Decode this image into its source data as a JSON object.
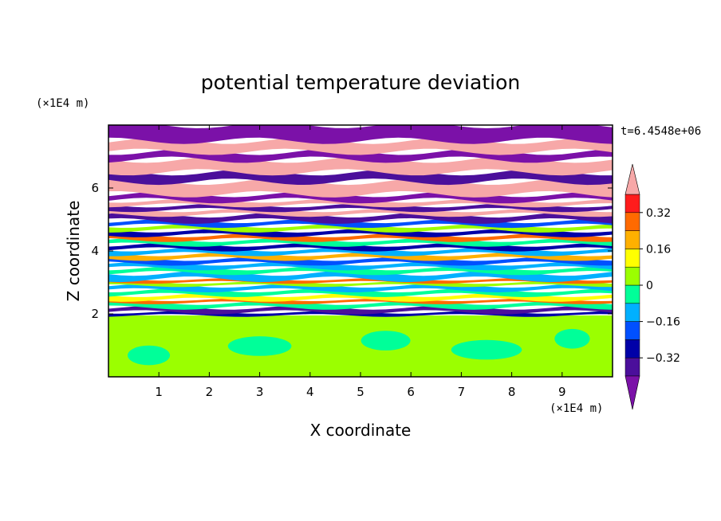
{
  "chart_data": {
    "type": "heatmap",
    "title": "potential temperature deviation",
    "xlabel": "X coordinate",
    "ylabel": "Z coordinate",
    "x_unit": "(×1E4 m)",
    "y_unit": "(×1E4 m)",
    "time_label": "t=6.4548e+06",
    "xlim": [
      0,
      10
    ],
    "ylim": [
      0,
      8
    ],
    "x_ticks": [
      1,
      2,
      3,
      4,
      5,
      6,
      7,
      8,
      9
    ],
    "y_ticks": [
      2,
      4,
      6
    ],
    "x_tick_labels": [
      "1",
      "2",
      "3",
      "4",
      "5",
      "6",
      "7",
      "8",
      "9"
    ],
    "y_tick_labels": [
      "2",
      "4",
      "6"
    ],
    "colorbar": {
      "levels": [
        -0.4,
        -0.32,
        -0.24,
        -0.16,
        -0.08,
        0,
        0.08,
        0.16,
        0.24,
        0.32,
        0.4
      ],
      "tick_values": [
        0.32,
        0.16,
        0,
        -0.16,
        -0.32
      ],
      "tick_labels": [
        "0.32",
        "0.16",
        "0",
        "−0.16",
        "−0.32"
      ],
      "colors": [
        "#7b11a8",
        "#4b0f9b",
        "#0000a8",
        "#0050ff",
        "#00b0ff",
        "#00ff99",
        "#9bff00",
        "#ffff00",
        "#ffb000",
        "#ff6a00",
        "#ff1c1c",
        "#f7a8a8"
      ],
      "extend": "both"
    },
    "bands": [
      {
        "z": [
          0.0,
          1.95
        ],
        "base": "#9bff00",
        "patch": "#00ff99"
      },
      {
        "z": [
          1.95,
          2.05
        ],
        "color": "#0000a8"
      },
      {
        "z": [
          2.05,
          2.2
        ],
        "color": "#4b0f9b"
      },
      {
        "z": [
          2.2,
          2.35
        ],
        "color": "#00ff99"
      },
      {
        "z": [
          2.35,
          2.45
        ],
        "color": "#ff6a00"
      },
      {
        "z": [
          2.45,
          2.6
        ],
        "color": "#ffff00"
      },
      {
        "z": [
          2.6,
          2.75
        ],
        "color": "#00ff99"
      },
      {
        "z": [
          2.75,
          2.9
        ],
        "color": "#00b0ff"
      },
      {
        "z": [
          2.9,
          3.0
        ],
        "color": "#9bff00"
      },
      {
        "z": [
          3.0,
          3.1
        ],
        "color": "#ff6a00"
      },
      {
        "z": [
          3.1,
          3.3
        ],
        "color": "#00b0ff"
      },
      {
        "z": [
          3.3,
          3.45
        ],
        "color": "#00ff99"
      },
      {
        "z": [
          3.45,
          3.6
        ],
        "color": "#00b0ff"
      },
      {
        "z": [
          3.6,
          3.75
        ],
        "color": "#0050ff"
      },
      {
        "z": [
          3.75,
          3.9
        ],
        "color": "#ffb000"
      },
      {
        "z": [
          3.9,
          4.05
        ],
        "color": "#00b0ff"
      },
      {
        "z": [
          4.05,
          4.2
        ],
        "color": "#0000a8"
      },
      {
        "z": [
          4.2,
          4.35
        ],
        "color": "#00ff99"
      },
      {
        "z": [
          4.35,
          4.5
        ],
        "color": "#ff6a00"
      },
      {
        "z": [
          4.5,
          4.65
        ],
        "color": "#0000a8"
      },
      {
        "z": [
          4.65,
          4.8
        ],
        "color": "#9bff00"
      },
      {
        "z": [
          4.8,
          4.95
        ],
        "color": "#0050ff"
      },
      {
        "z": [
          4.95,
          5.15
        ],
        "color": "#4b0f9b"
      },
      {
        "z": [
          5.15,
          5.3
        ],
        "color": "#f7a8a8"
      },
      {
        "z": [
          5.3,
          5.45
        ],
        "color": "#4b0f9b"
      },
      {
        "z": [
          5.45,
          5.6
        ],
        "color": "#f7a8a8"
      },
      {
        "z": [
          5.6,
          5.8
        ],
        "color": "#7b11a8"
      },
      {
        "z": [
          5.8,
          6.2
        ],
        "color": "#f7a8a8"
      },
      {
        "z": [
          6.2,
          6.5
        ],
        "color": "#4b0f9b"
      },
      {
        "z": [
          6.5,
          6.9
        ],
        "color": "#f7a8a8"
      },
      {
        "z": [
          6.9,
          7.15
        ],
        "color": "#7b11a8"
      },
      {
        "z": [
          7.15,
          7.5
        ],
        "color": "#f7a8a8"
      },
      {
        "z": [
          7.5,
          8.0
        ],
        "color": "#7b11a8"
      }
    ]
  }
}
